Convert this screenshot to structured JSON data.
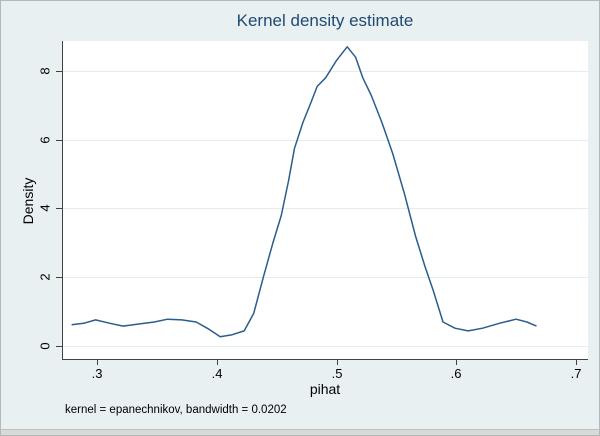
{
  "title": "Kernel density estimate",
  "note": "kernel = epanechnikov, bandwidth = 0.0202",
  "colors": {
    "background": "#e9f0f2",
    "plot_background": "#ffffff",
    "gridline": "#e1edf0",
    "axis": "#424242",
    "title_text": "#204a73",
    "line": "#2a5d8c",
    "tick_text": "#000000"
  },
  "chart_data": {
    "type": "line",
    "title": "Kernel density estimate",
    "xlabel": "pihat",
    "ylabel": "Density",
    "note": "kernel = epanechnikov, bandwidth = 0.0202",
    "kernel": "epanechnikov",
    "bandwidth": 0.0202,
    "grid": "horizontal",
    "legend": "none",
    "xlim": [
      0.2708,
      0.709
    ],
    "ylim": [
      -0.377,
      8.87
    ],
    "x_ticks": [
      0.3,
      0.4,
      0.5,
      0.6,
      0.7
    ],
    "x_tick_labels": [
      ".3",
      ".4",
      ".5",
      ".6",
      ".7"
    ],
    "y_ticks": [
      0,
      2,
      4,
      6,
      8
    ],
    "y_tick_labels": [
      "0",
      "2",
      "4",
      "6",
      "8"
    ],
    "series": [
      {
        "name": "kdensity pihat",
        "color": "#2a5d8c",
        "points": [
          [
            0.278,
            0.62
          ],
          [
            0.288,
            0.66
          ],
          [
            0.298,
            0.76
          ],
          [
            0.31,
            0.66
          ],
          [
            0.321,
            0.58
          ],
          [
            0.334,
            0.64
          ],
          [
            0.347,
            0.7
          ],
          [
            0.358,
            0.78
          ],
          [
            0.37,
            0.76
          ],
          [
            0.382,
            0.7
          ],
          [
            0.392,
            0.5
          ],
          [
            0.402,
            0.27
          ],
          [
            0.412,
            0.33
          ],
          [
            0.422,
            0.44
          ],
          [
            0.43,
            0.95
          ],
          [
            0.438,
            2.0
          ],
          [
            0.446,
            3.0
          ],
          [
            0.453,
            3.8
          ],
          [
            0.459,
            4.8
          ],
          [
            0.464,
            5.75
          ],
          [
            0.471,
            6.5
          ],
          [
            0.478,
            7.1
          ],
          [
            0.483,
            7.55
          ],
          [
            0.49,
            7.8
          ],
          [
            0.499,
            8.3
          ],
          [
            0.508,
            8.7
          ],
          [
            0.515,
            8.4
          ],
          [
            0.521,
            7.8
          ],
          [
            0.528,
            7.3
          ],
          [
            0.537,
            6.5
          ],
          [
            0.546,
            5.6
          ],
          [
            0.556,
            4.4
          ],
          [
            0.565,
            3.2
          ],
          [
            0.573,
            2.3
          ],
          [
            0.58,
            1.6
          ],
          [
            0.588,
            0.7
          ],
          [
            0.598,
            0.52
          ],
          [
            0.609,
            0.44
          ],
          [
            0.621,
            0.52
          ],
          [
            0.635,
            0.66
          ],
          [
            0.649,
            0.78
          ],
          [
            0.658,
            0.7
          ],
          [
            0.666,
            0.58
          ]
        ]
      }
    ]
  }
}
